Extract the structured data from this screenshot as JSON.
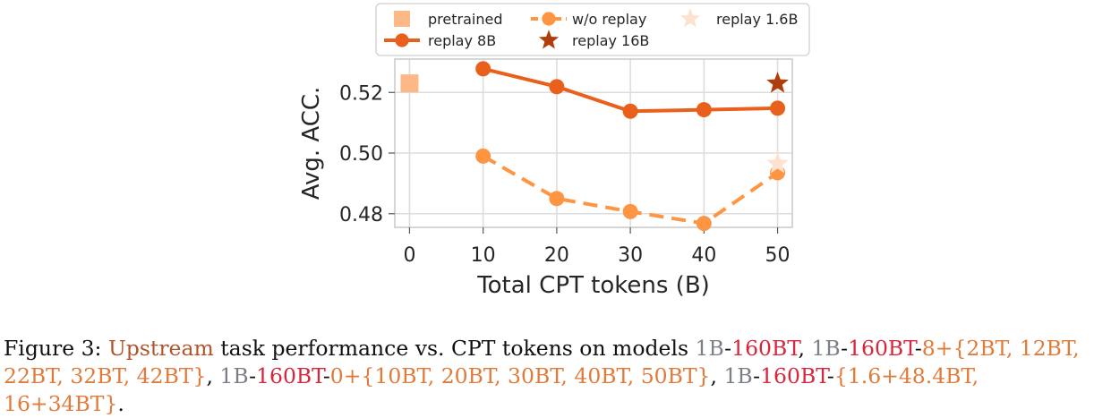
{
  "chart_data": {
    "type": "line",
    "xlabel": "Total CPT tokens (B)",
    "ylabel": "Avg. ACC.",
    "xlim": [
      -2,
      52
    ],
    "ylim": [
      0.4755,
      0.531
    ],
    "xticks": [
      0,
      10,
      20,
      30,
      40,
      50
    ],
    "yticks": [
      0.48,
      0.5,
      0.52
    ],
    "ytick_labels": [
      "0.48",
      "0.50",
      "0.52"
    ],
    "grid": true,
    "legend_placement": "top",
    "series": [
      {
        "name": "pretrained",
        "marker": "square",
        "linestyle": "none",
        "color": "#fdb887",
        "x": [
          0
        ],
        "y": [
          0.523
        ]
      },
      {
        "name": "w/o replay",
        "marker": "circle",
        "linestyle": "dashed",
        "color": "#fd9543",
        "x": [
          10,
          20,
          30,
          40,
          50
        ],
        "y": [
          0.499,
          0.485,
          0.4807,
          0.4768,
          0.4935
        ]
      },
      {
        "name": "replay 1.6B",
        "marker": "star",
        "linestyle": "none",
        "color": "#fde3cf",
        "x": [
          50
        ],
        "y": [
          0.4965
        ]
      },
      {
        "name": "replay 8B",
        "marker": "circle",
        "linestyle": "solid",
        "color": "#e8601c",
        "x": [
          10,
          20,
          30,
          40,
          50
        ],
        "y": [
          0.5278,
          0.5219,
          0.5138,
          0.5143,
          0.5148
        ]
      },
      {
        "name": "replay 16B",
        "marker": "star",
        "linestyle": "none",
        "color": "#b03e0b",
        "x": [
          50
        ],
        "y": [
          0.523
        ]
      }
    ]
  },
  "caption": {
    "figure_label": "Figure 3:",
    "upstream": "Upstream",
    "text1": " task performance vs. CPT tokens on models ",
    "m1_base": "1B",
    "dash": "-",
    "tokens160": "160BT",
    "comma": ", ",
    "m2_suffix": "8+{2BT, 12BT, 22BT, 32BT, 42BT}",
    "m3_suffix": "0+{10BT, 20BT, 30BT, 40BT, 50BT}",
    "m4_suffix": "{1.6+48.4BT, 16+34BT}",
    "end": "."
  }
}
